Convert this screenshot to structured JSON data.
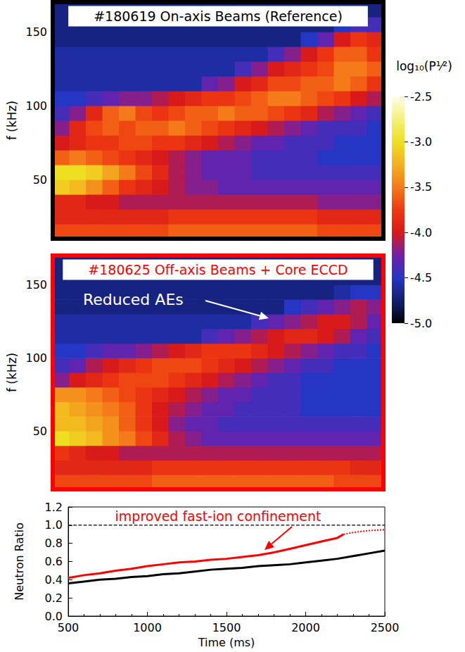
{
  "chart_data": [
    {
      "type": "heatmap",
      "title": "#180619 On-axis Beams (Reference)",
      "color": "#000000",
      "ylabel": "f (kHz)",
      "xlim": [
        500,
        2500
      ],
      "ylim": [
        10,
        170
      ],
      "yticks": [
        50,
        100,
        150
      ],
      "tick_labels": "y",
      "time_bins": [
        500,
        600,
        700,
        800,
        900,
        1000,
        1100,
        1200,
        1300,
        1400,
        1500,
        1600,
        1700,
        1800,
        1900,
        2000,
        2100,
        2200,
        2300,
        2400,
        2500
      ],
      "freq_bins": [
        10,
        20,
        30,
        40,
        50,
        60,
        70,
        80,
        90,
        100,
        110,
        120,
        130,
        140,
        150,
        160,
        170
      ],
      "values": [
        [
          -3.7,
          -3.7,
          -3.7,
          -3.7,
          -3.7,
          -3.7,
          -3.7,
          -3.6,
          -3.6,
          -3.6,
          -3.6,
          -3.6,
          -3.6,
          -3.6,
          -3.6,
          -3.6,
          -3.7,
          -3.7,
          -3.7,
          -3.7
        ],
        [
          -3.9,
          -3.9,
          -3.9,
          -3.9,
          -3.9,
          -3.9,
          -3.9,
          -3.8,
          -3.8,
          -3.8,
          -3.8,
          -3.8,
          -3.8,
          -3.8,
          -3.8,
          -3.8,
          -3.9,
          -3.9,
          -3.9,
          -3.9
        ],
        [
          -3.9,
          -3.9,
          -4.0,
          -4.0,
          -4.1,
          -4.1,
          -4.1,
          -4.1,
          -4.1,
          -4.1,
          -4.1,
          -4.1,
          -4.1,
          -4.1,
          -4.1,
          -4.1,
          -4.2,
          -4.2,
          -4.2,
          -4.2
        ],
        [
          -3.1,
          -3.2,
          -3.4,
          -3.6,
          -3.8,
          -3.9,
          -4.0,
          -4.1,
          -4.2,
          -4.2,
          -4.3,
          -4.3,
          -4.3,
          -4.3,
          -4.3,
          -4.3,
          -4.3,
          -4.3,
          -4.3,
          -4.3
        ],
        [
          -3.0,
          -3.0,
          -3.1,
          -3.3,
          -3.5,
          -3.7,
          -3.9,
          -4.1,
          -4.2,
          -4.3,
          -4.3,
          -4.3,
          -4.4,
          -4.4,
          -4.4,
          -4.4,
          -4.4,
          -4.4,
          -4.4,
          -4.4
        ],
        [
          -3.6,
          -3.5,
          -3.6,
          -3.7,
          -3.8,
          -3.9,
          -4.0,
          -4.1,
          -4.2,
          -4.3,
          -4.3,
          -4.3,
          -4.4,
          -4.4,
          -4.4,
          -4.4,
          -4.5,
          -4.5,
          -4.5,
          -4.5
        ],
        [
          -4.0,
          -3.9,
          -3.8,
          -3.8,
          -3.7,
          -3.7,
          -3.8,
          -3.8,
          -3.9,
          -4.0,
          -4.1,
          -4.2,
          -4.3,
          -4.3,
          -4.4,
          -4.4,
          -4.4,
          -4.5,
          -4.5,
          -4.5
        ],
        [
          -4.2,
          -3.9,
          -3.7,
          -3.6,
          -3.7,
          -3.6,
          -3.6,
          -3.5,
          -3.6,
          -3.7,
          -3.8,
          -3.9,
          -4.0,
          -4.1,
          -4.2,
          -4.3,
          -4.4,
          -4.4,
          -4.4,
          -4.5
        ],
        [
          -4.4,
          -4.2,
          -3.9,
          -3.6,
          -3.5,
          -3.7,
          -3.8,
          -3.7,
          -3.6,
          -3.6,
          -3.5,
          -3.6,
          -3.6,
          -3.7,
          -3.8,
          -3.9,
          -4.1,
          -4.2,
          -4.3,
          -4.4
        ],
        [
          -4.5,
          -4.5,
          -4.4,
          -4.3,
          -4.2,
          -4.2,
          -4.1,
          -4.0,
          -3.9,
          -3.8,
          -3.8,
          -3.7,
          -3.6,
          -3.5,
          -3.5,
          -3.6,
          -3.7,
          -3.8,
          -4.0,
          -4.1
        ],
        [
          -4.6,
          -4.6,
          -4.6,
          -4.6,
          -4.6,
          -4.6,
          -4.6,
          -4.6,
          -4.6,
          -4.3,
          -4.2,
          -4.0,
          -3.9,
          -3.7,
          -3.7,
          -3.6,
          -3.6,
          -3.5,
          -3.6,
          -3.8
        ],
        [
          -4.6,
          -4.6,
          -4.6,
          -4.6,
          -4.6,
          -4.6,
          -4.6,
          -4.6,
          -4.6,
          -4.6,
          -4.6,
          -4.4,
          -4.2,
          -4.0,
          -3.9,
          -3.8,
          -3.7,
          -3.5,
          -3.5,
          -3.6
        ],
        [
          -4.6,
          -4.6,
          -4.6,
          -4.6,
          -4.6,
          -4.6,
          -4.6,
          -4.6,
          -4.6,
          -4.6,
          -4.6,
          -4.6,
          -4.6,
          -4.4,
          -4.2,
          -4.0,
          -3.8,
          -3.6,
          -3.6,
          -3.8
        ],
        [
          -4.7,
          -4.7,
          -4.7,
          -4.7,
          -4.7,
          -4.7,
          -4.7,
          -4.7,
          -4.7,
          -4.7,
          -4.7,
          -4.7,
          -4.7,
          -4.7,
          -4.7,
          -4.5,
          -4.3,
          -4.0,
          -3.8,
          -3.9
        ],
        [
          -4.7,
          -4.7,
          -4.7,
          -4.7,
          -4.7,
          -4.7,
          -4.7,
          -4.7,
          -4.7,
          -4.7,
          -4.7,
          -4.7,
          -4.7,
          -4.7,
          -4.7,
          -4.7,
          -4.7,
          -4.5,
          -4.4,
          -4.4
        ],
        [
          -4.7,
          -4.7,
          -4.7,
          -4.7,
          -4.7,
          -4.7,
          -4.7,
          -4.7,
          -4.7,
          -4.7,
          -4.7,
          -4.7,
          -4.7,
          -4.7,
          -4.7,
          -4.7,
          -4.7,
          -4.7,
          -4.7,
          -4.7
        ]
      ],
      "colorbar": {
        "title": "log₁₀(P¹⁄²)",
        "range": [
          -5,
          -2.5
        ],
        "ticks": [
          {
            "value": -5,
            "label": "-5.0"
          },
          -4.5,
          {
            "value": -4,
            "label": "-4.0"
          },
          -3.5,
          {
            "value": -3,
            "label": "-3.0"
          },
          -2.5
        ]
      }
    },
    {
      "type": "heatmap",
      "title": "#180625 Off-axis Beams + Core ECCD",
      "color": "#ff0000",
      "ylabel": "f (kHz)",
      "xlim": [
        500,
        2500
      ],
      "ylim": [
        10,
        170
      ],
      "yticks": [
        50,
        100,
        150
      ],
      "tick_labels": "y",
      "annotations": [
        {
          "text": "Reduced AEs",
          "color": "#ffffff"
        }
      ],
      "time_bins": [
        500,
        600,
        700,
        800,
        900,
        1000,
        1100,
        1200,
        1300,
        1400,
        1500,
        1600,
        1700,
        1800,
        1900,
        2000,
        2100,
        2200,
        2300,
        2400,
        2500
      ],
      "freq_bins": [
        10,
        20,
        30,
        40,
        50,
        60,
        70,
        80,
        90,
        100,
        110,
        120,
        130,
        140,
        150,
        160,
        170
      ],
      "values": [
        [
          -3.7,
          -3.7,
          -3.7,
          -3.7,
          -3.7,
          -3.7,
          -3.6,
          -3.6,
          -3.6,
          -3.6,
          -3.6,
          -3.6,
          -3.6,
          -3.6,
          -3.6,
          -3.6,
          -3.6,
          -3.7,
          -3.7,
          -3.7
        ],
        [
          -3.9,
          -3.9,
          -3.9,
          -3.9,
          -3.9,
          -3.9,
          -3.8,
          -3.8,
          -3.8,
          -3.8,
          -3.8,
          -3.8,
          -3.8,
          -3.8,
          -3.8,
          -3.8,
          -3.8,
          -3.8,
          -3.9,
          -3.9
        ],
        [
          -3.8,
          -3.9,
          -4.0,
          -4.0,
          -4.1,
          -4.1,
          -4.1,
          -4.1,
          -4.1,
          -4.1,
          -4.1,
          -4.1,
          -4.1,
          -4.1,
          -4.1,
          -4.1,
          -4.1,
          -4.1,
          -4.1,
          -4.1
        ],
        [
          -3.0,
          -3.1,
          -3.2,
          -3.4,
          -3.5,
          -3.7,
          -3.9,
          -4.1,
          -4.2,
          -4.3,
          -4.3,
          -4.3,
          -4.3,
          -4.3,
          -4.3,
          -4.3,
          -4.3,
          -4.3,
          -4.3,
          -4.3
        ],
        [
          -3.2,
          -3.2,
          -3.3,
          -3.4,
          -3.6,
          -3.8,
          -4.0,
          -4.2,
          -4.3,
          -4.3,
          -4.4,
          -4.4,
          -4.4,
          -4.4,
          -4.4,
          -4.4,
          -4.4,
          -4.4,
          -4.4,
          -4.4
        ],
        [
          -3.2,
          -3.3,
          -3.4,
          -3.5,
          -3.6,
          -3.8,
          -4.0,
          -4.1,
          -4.2,
          -4.3,
          -4.3,
          -4.4,
          -4.4,
          -4.4,
          -4.4,
          -4.5,
          -4.5,
          -4.5,
          -4.5,
          -4.5
        ],
        [
          -3.4,
          -3.4,
          -3.5,
          -3.6,
          -3.7,
          -3.8,
          -3.9,
          -4.0,
          -4.1,
          -4.2,
          -4.3,
          -4.3,
          -4.4,
          -4.4,
          -4.4,
          -4.5,
          -4.5,
          -4.5,
          -4.5,
          -4.5
        ],
        [
          -4.2,
          -4.0,
          -3.9,
          -3.8,
          -3.7,
          -3.7,
          -3.7,
          -3.8,
          -3.9,
          -4.0,
          -4.1,
          -4.2,
          -4.3,
          -4.4,
          -4.4,
          -4.5,
          -4.5,
          -4.5,
          -4.5,
          -4.5
        ],
        [
          -4.4,
          -4.3,
          -4.1,
          -4.0,
          -3.9,
          -3.8,
          -3.7,
          -3.7,
          -3.7,
          -3.8,
          -3.9,
          -4.0,
          -4.1,
          -4.2,
          -4.3,
          -4.4,
          -4.4,
          -4.5,
          -4.5,
          -4.5
        ],
        [
          -4.5,
          -4.5,
          -4.4,
          -4.3,
          -4.3,
          -4.2,
          -4.1,
          -4.0,
          -3.9,
          -3.8,
          -3.8,
          -3.8,
          -3.9,
          -4.0,
          -4.1,
          -4.2,
          -4.3,
          -4.4,
          -4.4,
          -4.5
        ],
        [
          -4.6,
          -4.6,
          -4.6,
          -4.6,
          -4.6,
          -4.6,
          -4.6,
          -4.6,
          -4.6,
          -4.4,
          -4.3,
          -4.2,
          -4.1,
          -4.0,
          -3.9,
          -3.9,
          -4.0,
          -4.1,
          -4.3,
          -4.4
        ],
        [
          -4.6,
          -4.6,
          -4.6,
          -4.6,
          -4.6,
          -4.6,
          -4.6,
          -4.6,
          -4.6,
          -4.6,
          -4.6,
          -4.6,
          -4.4,
          -4.3,
          -4.2,
          -4.1,
          -4.0,
          -4.0,
          -4.1,
          -4.3
        ],
        [
          -4.7,
          -4.7,
          -4.7,
          -4.7,
          -4.7,
          -4.7,
          -4.7,
          -4.7,
          -4.7,
          -4.7,
          -4.7,
          -4.7,
          -4.7,
          -4.7,
          -4.5,
          -4.4,
          -4.3,
          -4.2,
          -4.1,
          -4.2
        ],
        [
          -4.7,
          -4.7,
          -4.7,
          -4.7,
          -4.7,
          -4.7,
          -4.7,
          -4.7,
          -4.7,
          -4.7,
          -4.7,
          -4.7,
          -4.7,
          -4.7,
          -4.7,
          -4.7,
          -4.7,
          -4.6,
          -4.5,
          -4.5
        ],
        [
          -4.7,
          -4.7,
          -4.7,
          -4.7,
          -4.7,
          -4.7,
          -4.7,
          -4.7,
          -4.7,
          -4.7,
          -4.7,
          -4.7,
          -4.7,
          -4.7,
          -4.7,
          -4.7,
          -4.7,
          -4.7,
          -4.7,
          -4.7
        ],
        [
          -4.7,
          -4.7,
          -4.7,
          -4.7,
          -4.7,
          -4.7,
          -4.7,
          -4.7,
          -4.7,
          -4.7,
          -4.7,
          -4.7,
          -4.7,
          -4.7,
          -4.7,
          -4.7,
          -4.7,
          -4.7,
          -4.7,
          -4.7
        ]
      ]
    },
    {
      "type": "line",
      "xlabel": "Time (ms)",
      "ylabel": "Neutron Ratio",
      "xlim": [
        500,
        2500
      ],
      "xticks": [
        500,
        1000,
        1500,
        2000,
        2500
      ],
      "ylim": [
        0,
        1.2
      ],
      "yticks": [
        {
          "value": 0,
          "label": "0.0"
        },
        0.2,
        0.4,
        0.6,
        0.8,
        {
          "value": 1,
          "label": "1.0"
        },
        1.2
      ],
      "annotations": [
        {
          "text": "improved fast-ion confinement",
          "color": "#ff0000"
        }
      ],
      "series": [
        {
          "color": "#000000",
          "line_style": "dashed",
          "x": [
            500,
            2500
          ],
          "values": [
            1.0,
            1.0
          ]
        },
        {
          "color": "#000000",
          "line_style": "solid",
          "x": [
            500,
            600,
            700,
            800,
            900,
            1000,
            1100,
            1200,
            1300,
            1400,
            1500,
            1600,
            1700,
            1800,
            1900,
            2000,
            2100,
            2200,
            2300,
            2400,
            2500
          ],
          "values": [
            0.36,
            0.38,
            0.4,
            0.41,
            0.43,
            0.44,
            0.46,
            0.47,
            0.49,
            0.51,
            0.52,
            0.53,
            0.55,
            0.56,
            0.57,
            0.59,
            0.61,
            0.63,
            0.66,
            0.69,
            0.72
          ]
        },
        {
          "color": "#ff0000",
          "line_style": "solid",
          "x": [
            500,
            600,
            700,
            800,
            900,
            1000,
            1100,
            1200,
            1300,
            1400,
            1500,
            1600,
            1700,
            1800,
            1900,
            2000,
            2100,
            2200,
            2240
          ],
          "values": [
            0.42,
            0.45,
            0.47,
            0.5,
            0.52,
            0.55,
            0.57,
            0.59,
            0.6,
            0.62,
            0.63,
            0.65,
            0.67,
            0.7,
            0.74,
            0.78,
            0.82,
            0.86,
            0.9
          ]
        },
        {
          "color": "#ff0000",
          "line_style": "dotted",
          "x": [
            2240,
            2300,
            2400,
            2500
          ],
          "values": [
            0.9,
            0.92,
            0.94,
            0.95
          ]
        }
      ]
    }
  ]
}
